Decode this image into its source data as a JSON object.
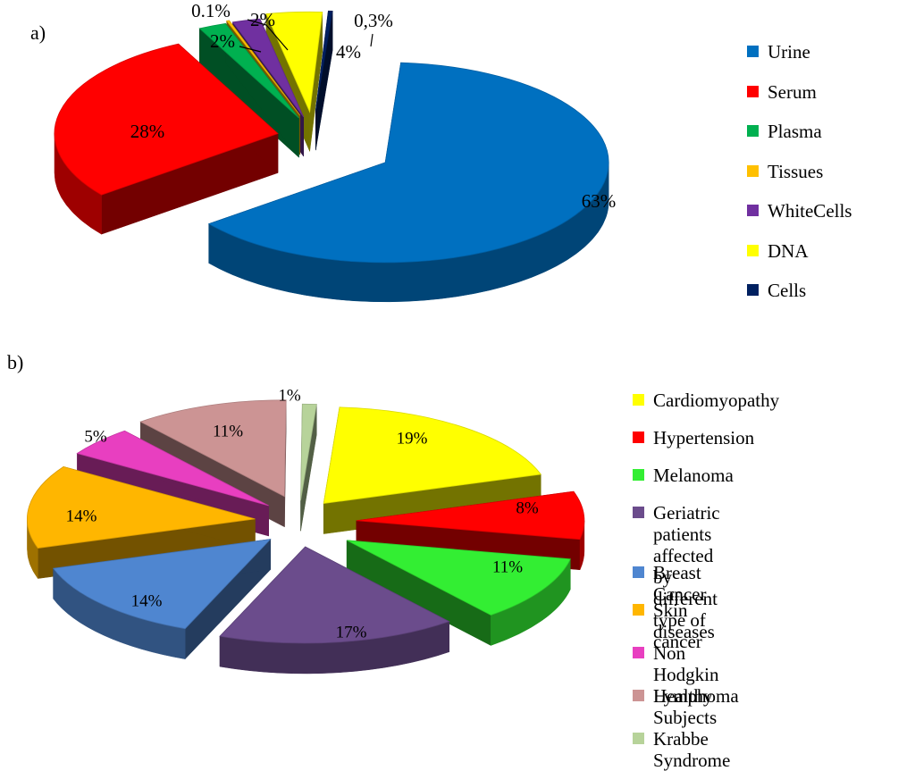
{
  "chart_data": [
    {
      "type": "pie",
      "panel": "a)",
      "labels": [
        "Urine",
        "Serum",
        "Plasma",
        "Tissues",
        "WhiteCells",
        "DNA",
        "Cells"
      ],
      "values": [
        63,
        28,
        2,
        0.1,
        2,
        4,
        0.3
      ],
      "value_labels": [
        "63%",
        "28%",
        "2%",
        "0.1%",
        "2%",
        "4%",
        "0,3%"
      ],
      "colors": [
        "#0070C0",
        "#FF0000",
        "#00B050",
        "#FFC000",
        "#7030A0",
        "#FFFF00",
        "#002060"
      ],
      "legend_position": "right"
    },
    {
      "type": "pie",
      "panel": "b)",
      "labels": [
        "Cardiomyopathy",
        "Hypertension",
        "Melanoma",
        "Geriatric patients affected by\ndifferent type of cancer",
        "Breast Cancer",
        "Skin diseases",
        "Non Hodgkin Lymphoma",
        "Healthy Subjects",
        "Krabbe Syndrome"
      ],
      "values": [
        19,
        8,
        11,
        17,
        14,
        14,
        5,
        11,
        1
      ],
      "value_labels": [
        "19%",
        "8%",
        "11%",
        "17%",
        "14%",
        "14%",
        "5%",
        "11%",
        "1%"
      ],
      "colors": [
        "#FFFF00",
        "#FF0000",
        "#33EE33",
        "#6B4C8C",
        "#4F86D0",
        "#FFB600",
        "#E83FC0",
        "#CC9494",
        "#B7D39A"
      ],
      "legend_position": "right"
    }
  ]
}
